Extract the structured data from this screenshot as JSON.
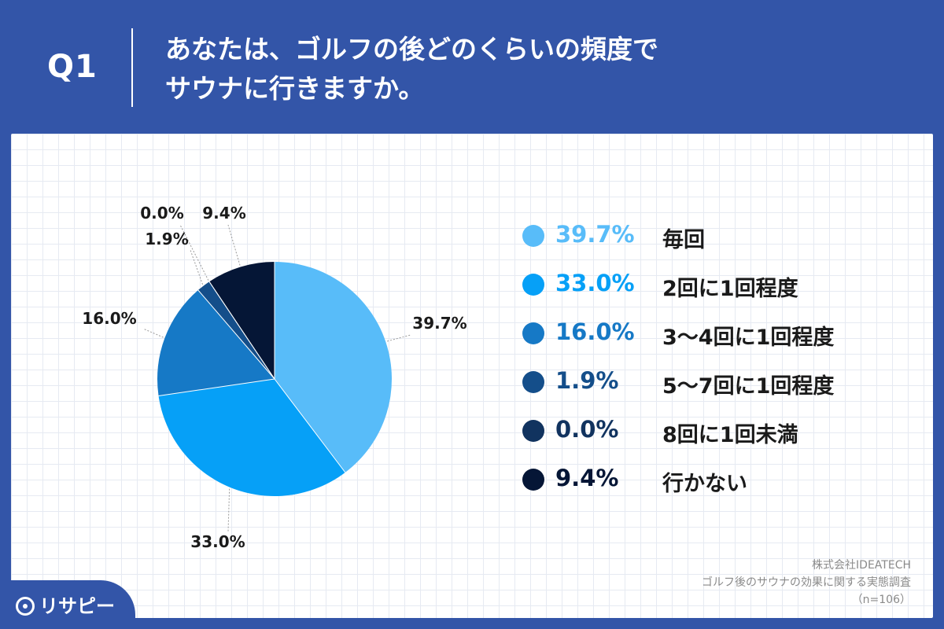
{
  "header": {
    "q_label": "Q1",
    "title_line1": "あなたは、ゴルフの後どのくらいの頻度で",
    "title_line2": "サウナに行きますか。"
  },
  "chart_data": {
    "type": "pie",
    "categories": [
      "毎回",
      "2回に1回程度",
      "3〜4回に1回程度",
      "5〜7回に1回程度",
      "8回に1回未満",
      "行かない"
    ],
    "values": [
      39.7,
      33.0,
      16.0,
      1.9,
      0.0,
      9.4
    ],
    "labels": [
      "39.7%",
      "33.0%",
      "16.0%",
      "1.9%",
      "0.0%",
      "9.4%"
    ],
    "colors": [
      "#58bcf9",
      "#06a0f7",
      "#1679c6",
      "#144e8a",
      "#11335f",
      "#051636"
    ],
    "legend_placement": "right"
  },
  "source": {
    "company": "株式会社IDEATECH",
    "survey": "ゴルフ後のサウナの効果に関する実態調査",
    "sample": "（n=106）"
  },
  "logo": {
    "text": "リサピー"
  }
}
